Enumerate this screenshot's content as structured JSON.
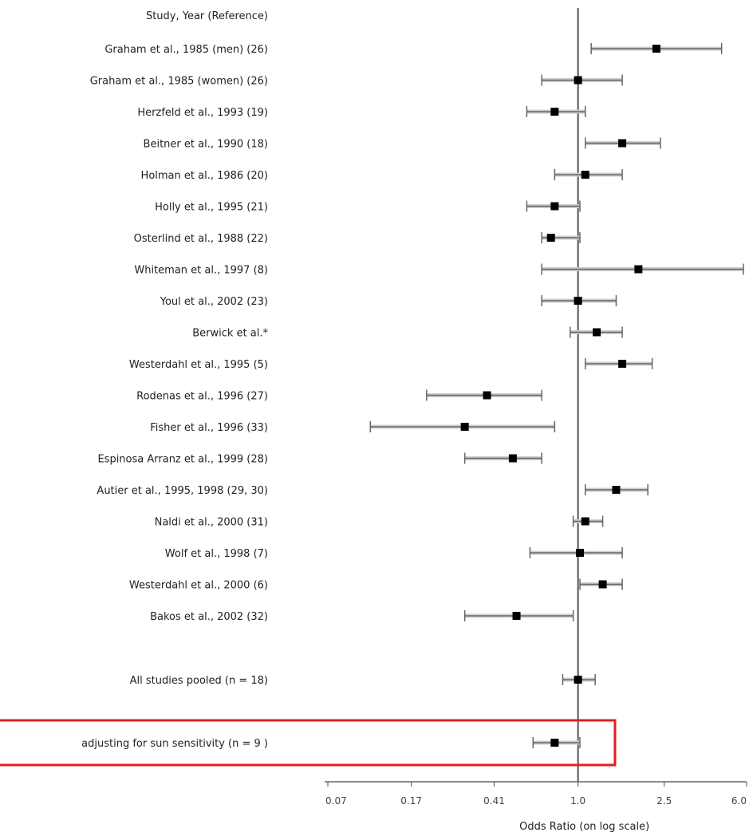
{
  "chart_data": {
    "type": "forest",
    "header": "Study, Year (Reference)",
    "xlabel": "Odds Ratio (on log scale)",
    "x_scale": "log",
    "xlim": [
      0.07,
      6.0
    ],
    "xticks": [
      0.07,
      0.17,
      0.41,
      1.0,
      2.5,
      6.0
    ],
    "xtick_labels": [
      "0.07",
      "0.17",
      "0.41",
      "1.0",
      "2.5",
      "6.0"
    ],
    "reference_line": 1.0,
    "studies": [
      {
        "label": "Graham et al., 1985 (men) (26)",
        "or": 2.3,
        "lo": 1.15,
        "hi": 4.6
      },
      {
        "label": "Graham et al., 1985 (women) (26)",
        "or": 1.0,
        "lo": 0.68,
        "hi": 1.6
      },
      {
        "label": "Herzfeld et al., 1993 (19)",
        "or": 0.78,
        "lo": 0.58,
        "hi": 1.08
      },
      {
        "label": "Beitner et al., 1990 (18)",
        "or": 1.6,
        "lo": 1.08,
        "hi": 2.4
      },
      {
        "label": "Holman et al., 1986 (20)",
        "or": 1.08,
        "lo": 0.78,
        "hi": 1.6
      },
      {
        "label": "Holly et al., 1995 (21)",
        "or": 0.78,
        "lo": 0.58,
        "hi": 1.02
      },
      {
        "label": "Osterlind et al., 1988 (22)",
        "or": 0.75,
        "lo": 0.68,
        "hi": 1.02
      },
      {
        "label": "Whiteman et al., 1997 (8)",
        "or": 1.9,
        "lo": 0.68,
        "hi": 5.8
      },
      {
        "label": "Youl et al., 2002 (23)",
        "or": 1.0,
        "lo": 0.68,
        "hi": 1.5
      },
      {
        "label": "Berwick et al.*",
        "or": 1.22,
        "lo": 0.92,
        "hi": 1.6
      },
      {
        "label": "Westerdahl et al., 1995 (5)",
        "or": 1.6,
        "lo": 1.08,
        "hi": 2.2
      },
      {
        "label": "Rodenas et al., 1996 (27)",
        "or": 0.38,
        "lo": 0.2,
        "hi": 0.68
      },
      {
        "label": "Fisher et al., 1996 (33)",
        "or": 0.3,
        "lo": 0.11,
        "hi": 0.78
      },
      {
        "label": "Espinosa Arranz et al., 1999 (28)",
        "or": 0.5,
        "lo": 0.3,
        "hi": 0.68
      },
      {
        "label": "Autier et al., 1995, 1998 (29, 30)",
        "or": 1.5,
        "lo": 1.08,
        "hi": 2.1
      },
      {
        "label": "Naldi et al., 2000 (31)",
        "or": 1.08,
        "lo": 0.95,
        "hi": 1.3
      },
      {
        "label": "Wolf et al., 1998 (7)",
        "or": 1.02,
        "lo": 0.6,
        "hi": 1.6
      },
      {
        "label": "Westerdahl et al., 2000 (6)",
        "or": 1.3,
        "lo": 1.02,
        "hi": 1.6
      },
      {
        "label": "Bakos et al., 2002 (32)",
        "or": 0.52,
        "lo": 0.3,
        "hi": 0.95
      }
    ],
    "pooled": [
      {
        "label": "All studies pooled (n = 18)",
        "or": 1.0,
        "lo": 0.85,
        "hi": 1.2
      },
      {
        "label": "adjusting for sun sensitivity (n = 9 )",
        "or": 0.78,
        "lo": 0.62,
        "hi": 1.02,
        "highlighted": true
      }
    ],
    "highlight_color": "#e02020",
    "marker_color": "#000000",
    "ci_color": "#666666",
    "ci_shade": "#cccccc"
  }
}
